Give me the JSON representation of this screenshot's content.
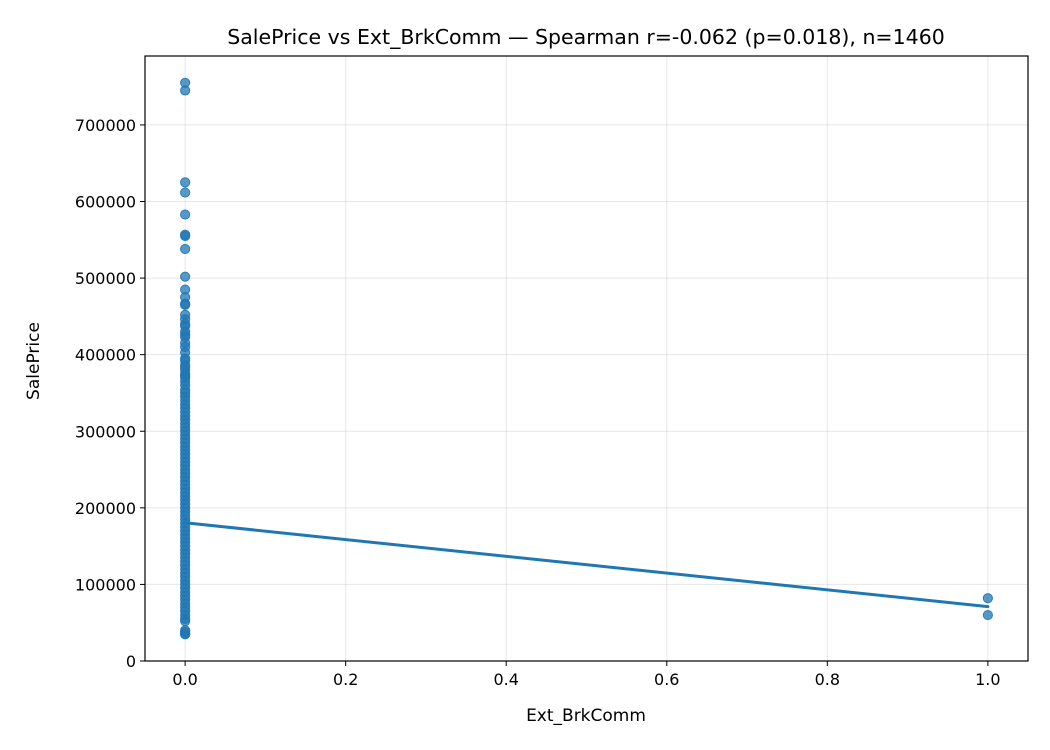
{
  "chart_data": {
    "type": "scatter",
    "title": "SalePrice vs Ext_BrkComm — Spearman r=-0.062 (p=0.018), n=1460",
    "xlabel": "Ext_BrkComm",
    "ylabel": "SalePrice",
    "xlim": [
      -0.05,
      1.05
    ],
    "ylim": [
      0,
      790000
    ],
    "grid": true,
    "x_ticks": [
      0.0,
      0.2,
      0.4,
      0.6,
      0.8,
      1.0
    ],
    "x_tick_labels": [
      "0.0",
      "0.2",
      "0.4",
      "0.6",
      "0.8",
      "1.0"
    ],
    "y_ticks": [
      0,
      100000,
      200000,
      300000,
      400000,
      500000,
      600000,
      700000
    ],
    "y_tick_labels": [
      "0",
      "100000",
      "200000",
      "300000",
      "400000",
      "500000",
      "600000",
      "700000"
    ],
    "point_color": "#1f77b4",
    "line_color": "#1f77b4",
    "points": [
      [
        0,
        755000
      ],
      [
        0,
        745000
      ],
      [
        0,
        625000
      ],
      [
        0,
        611657
      ],
      [
        0,
        582933
      ],
      [
        0,
        556581
      ],
      [
        0,
        555000
      ],
      [
        0,
        538000
      ],
      [
        0,
        501837
      ],
      [
        0,
        485000
      ],
      [
        0,
        475000
      ],
      [
        0,
        466500
      ],
      [
        0,
        465000
      ],
      [
        0,
        451950
      ],
      [
        0,
        446261
      ],
      [
        0,
        440000
      ],
      [
        0,
        437154
      ],
      [
        0,
        430000
      ],
      [
        0,
        426000
      ],
      [
        0,
        423000
      ],
      [
        0,
        415298
      ],
      [
        0,
        410000
      ],
      [
        0,
        402861
      ],
      [
        0,
        395000
      ],
      [
        0,
        392000
      ],
      [
        0,
        386250
      ],
      [
        0,
        383970
      ],
      [
        0,
        380000
      ],
      [
        0,
        375000
      ],
      [
        0,
        372402
      ],
      [
        0,
        369900
      ],
      [
        0,
        365000
      ],
      [
        0,
        360000
      ],
      [
        0,
        354000
      ],
      [
        0,
        350000
      ],
      [
        0,
        345000
      ],
      [
        0,
        340000
      ],
      [
        0,
        335000
      ],
      [
        0,
        330000
      ],
      [
        0,
        325000
      ],
      [
        0,
        320000
      ],
      [
        0,
        315000
      ],
      [
        0,
        310000
      ],
      [
        0,
        305000
      ],
      [
        0,
        300000
      ],
      [
        0,
        295000
      ],
      [
        0,
        290000
      ],
      [
        0,
        285000
      ],
      [
        0,
        280000
      ],
      [
        0,
        275000
      ],
      [
        0,
        270000
      ],
      [
        0,
        265000
      ],
      [
        0,
        260000
      ],
      [
        0,
        255000
      ],
      [
        0,
        250000
      ],
      [
        0,
        245000
      ],
      [
        0,
        240000
      ],
      [
        0,
        235000
      ],
      [
        0,
        230000
      ],
      [
        0,
        225000
      ],
      [
        0,
        220000
      ],
      [
        0,
        215000
      ],
      [
        0,
        210000
      ],
      [
        0,
        205000
      ],
      [
        0,
        200000
      ],
      [
        0,
        195000
      ],
      [
        0,
        190000
      ],
      [
        0,
        185000
      ],
      [
        0,
        180000
      ],
      [
        0,
        175000
      ],
      [
        0,
        170000
      ],
      [
        0,
        165000
      ],
      [
        0,
        160000
      ],
      [
        0,
        155000
      ],
      [
        0,
        150000
      ],
      [
        0,
        145000
      ],
      [
        0,
        140000
      ],
      [
        0,
        135000
      ],
      [
        0,
        130000
      ],
      [
        0,
        125000
      ],
      [
        0,
        120000
      ],
      [
        0,
        115000
      ],
      [
        0,
        110000
      ],
      [
        0,
        105000
      ],
      [
        0,
        100000
      ],
      [
        0,
        95000
      ],
      [
        0,
        90000
      ],
      [
        0,
        85000
      ],
      [
        0,
        80000
      ],
      [
        0,
        75000
      ],
      [
        0,
        70000
      ],
      [
        0,
        65000
      ],
      [
        0,
        60000
      ],
      [
        0,
        55000
      ],
      [
        0,
        52000
      ],
      [
        0,
        40000
      ],
      [
        0,
        37900
      ],
      [
        0,
        35311
      ],
      [
        0,
        34900
      ],
      [
        1,
        82000
      ],
      [
        1,
        60000
      ]
    ],
    "trend_line": {
      "x": [
        0,
        1
      ],
      "y": [
        180500,
        71000
      ]
    }
  }
}
